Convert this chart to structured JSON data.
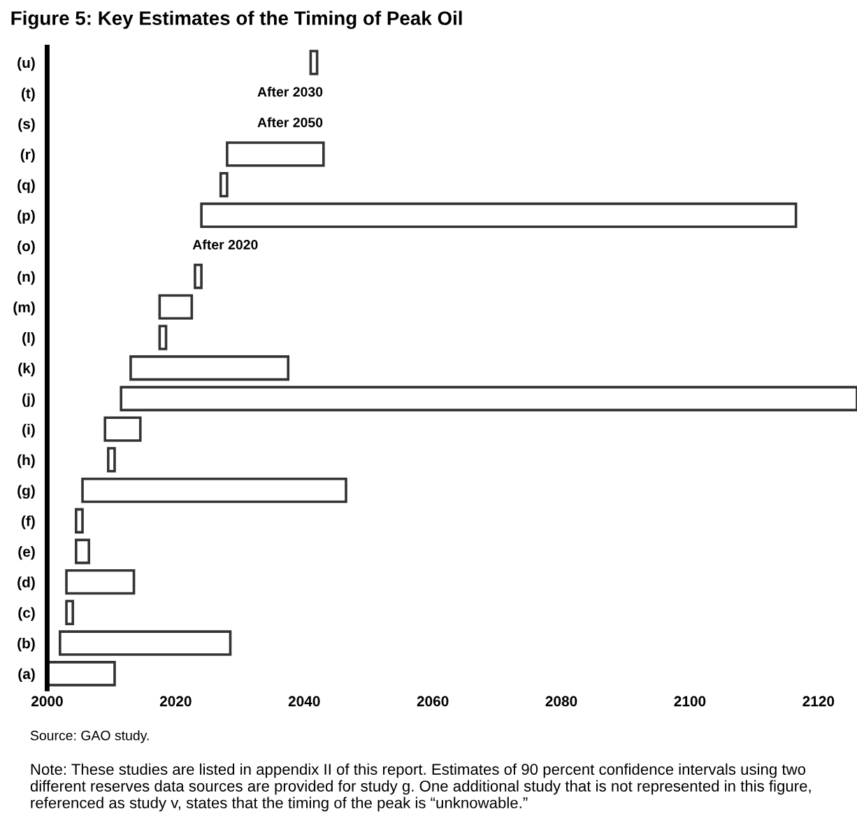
{
  "chart_data": {
    "type": "bar",
    "orientation": "horizontal",
    "title": "Figure 5: Key Estimates of the Timing of Peak Oil",
    "categories": [
      "(u)",
      "(t)",
      "(s)",
      "(r)",
      "(q)",
      "(p)",
      "(o)",
      "(n)",
      "(m)",
      "(l)",
      "(k)",
      "(j)",
      "(i)",
      "(h)",
      "(g)",
      "(f)",
      "(e)",
      "(d)",
      "(c)",
      "(b)",
      "(a)"
    ],
    "base": [
      2041,
      null,
      null,
      2028,
      2027,
      2024,
      null,
      2023,
      2017.5,
      2017.5,
      2013,
      2011.5,
      2009,
      2009.5,
      2005.5,
      2004.5,
      2004.5,
      2003,
      2003,
      2002,
      2000
    ],
    "values": [
      1,
      null,
      null,
      15,
      1,
      92.5,
      null,
      1,
      5,
      1,
      24.5,
      114.5,
      5.5,
      1,
      41,
      1,
      2,
      10.5,
      1,
      26.5,
      10.5
    ],
    "color": "#ffffff",
    "xlim": [
      2000,
      2126
    ],
    "xticks": [
      2000,
      2020,
      2040,
      2060,
      2080,
      2100,
      2120
    ],
    "grid": false,
    "legend": false,
    "annotations": [
      "After 2030",
      "After 2050",
      "After 2020",
      "Source: GAO study.",
      "Note: These studies are listed in appendix II of this report. Estimates of 90 percent confidence intervals using two different reserves data sources are provided for study g. One additional study that is not represented in this figure, referenced as study v, states that the timing of the peak is “unknowable.”"
    ]
  }
}
